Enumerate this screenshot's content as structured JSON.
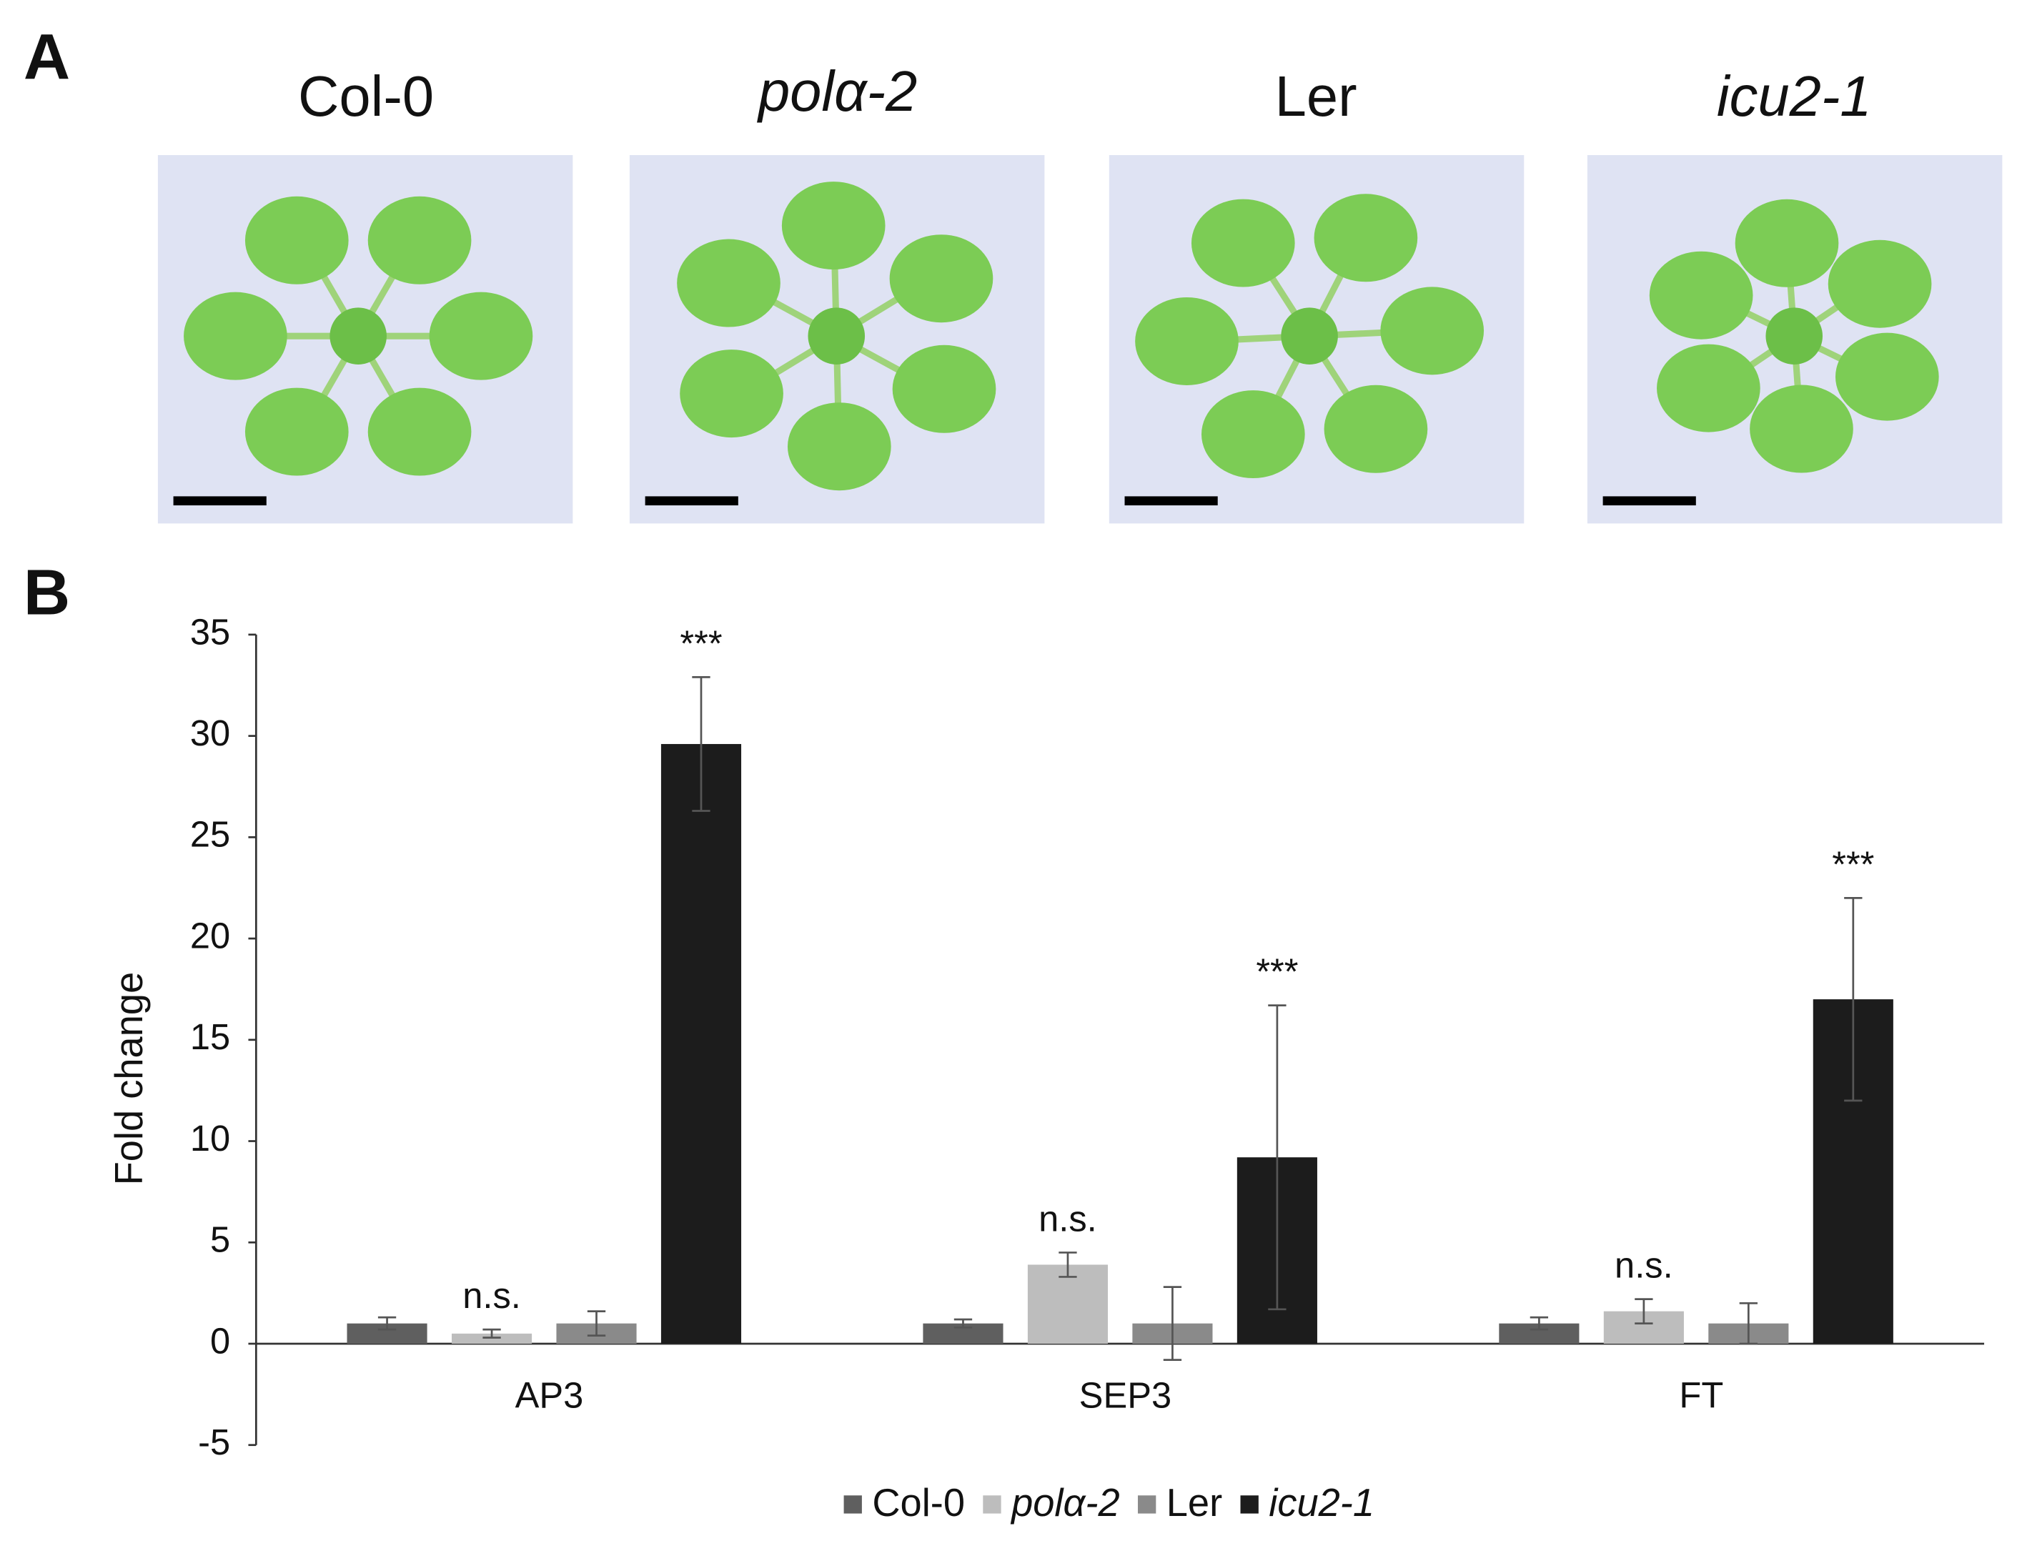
{
  "figure": {
    "panel_labels": [
      "A",
      "B"
    ],
    "image_labels": [
      "Col-0",
      "polα-2",
      "Ler",
      "icu2-1"
    ]
  },
  "chart_data": {
    "type": "bar",
    "ylabel": "Fold change",
    "categories": [
      "AP3",
      "SEP3",
      "FT"
    ],
    "series": [
      {
        "name": "Col-0",
        "color": "#5f5f5f",
        "italic": false,
        "values": [
          1,
          1,
          1
        ],
        "errors": [
          0.3,
          0.2,
          0.3
        ]
      },
      {
        "name": "polα-2",
        "color": "#bdbdbd",
        "italic": true,
        "values": [
          0.5,
          3.9,
          1.6
        ],
        "errors": [
          0.2,
          0.6,
          0.6
        ],
        "annotations": [
          "n.s.",
          "n.s.",
          "n.s."
        ]
      },
      {
        "name": "Ler",
        "color": "#8a8a8a",
        "italic": false,
        "values": [
          1,
          1,
          1
        ],
        "errors": [
          0.6,
          1.8,
          1.0
        ]
      },
      {
        "name": "icu2-1",
        "color": "#1c1c1c",
        "italic": true,
        "values": [
          29.6,
          9.2,
          17.0
        ],
        "errors": [
          3.3,
          7.5,
          5.0
        ],
        "annotations": [
          "***",
          "***",
          "***"
        ]
      }
    ],
    "ylim": [
      -5,
      35
    ],
    "yticks": [
      -5,
      0,
      5,
      10,
      15,
      20,
      25,
      30,
      35
    ],
    "grid": false
  }
}
